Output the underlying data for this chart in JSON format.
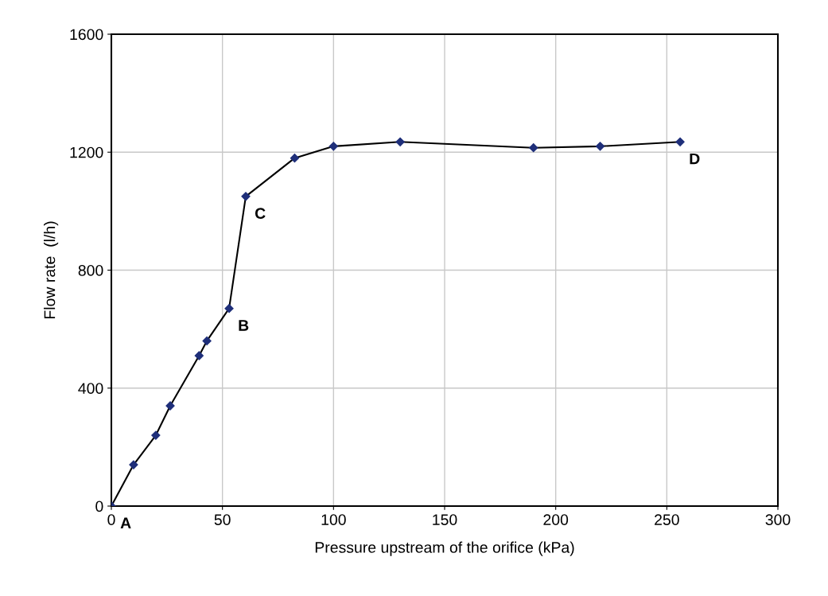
{
  "chart_data": {
    "type": "line",
    "xlabel": "Pressure upstream of the orifice (kPa)",
    "ylabel": "Flow rate  (l/h)",
    "x": [
      0,
      10,
      20,
      26.5,
      39.5,
      43,
      53,
      60.5,
      82.5,
      100,
      130,
      190,
      220,
      256
    ],
    "series": [
      {
        "color": "#000000",
        "values": [
          0,
          140,
          240,
          340,
          510,
          560,
          670,
          1050,
          1180,
          1220,
          1235,
          1215,
          1220,
          1235
        ]
      }
    ],
    "marker": "diamond",
    "line_style": "solid",
    "xlim": [
      0,
      300
    ],
    "xticks": [
      0,
      50,
      100,
      150,
      200,
      250,
      300
    ],
    "ylim": [
      0,
      1600
    ],
    "yticks": [
      0,
      400,
      800,
      1200,
      1600
    ],
    "grid": true,
    "annotations": [
      {
        "text": "A",
        "x": 0,
        "y": 0
      },
      {
        "text": "B",
        "x": 53,
        "y": 670
      },
      {
        "text": "C",
        "x": 60.5,
        "y": 1050
      },
      {
        "text": "D",
        "x": 256,
        "y": 1235
      }
    ]
  }
}
